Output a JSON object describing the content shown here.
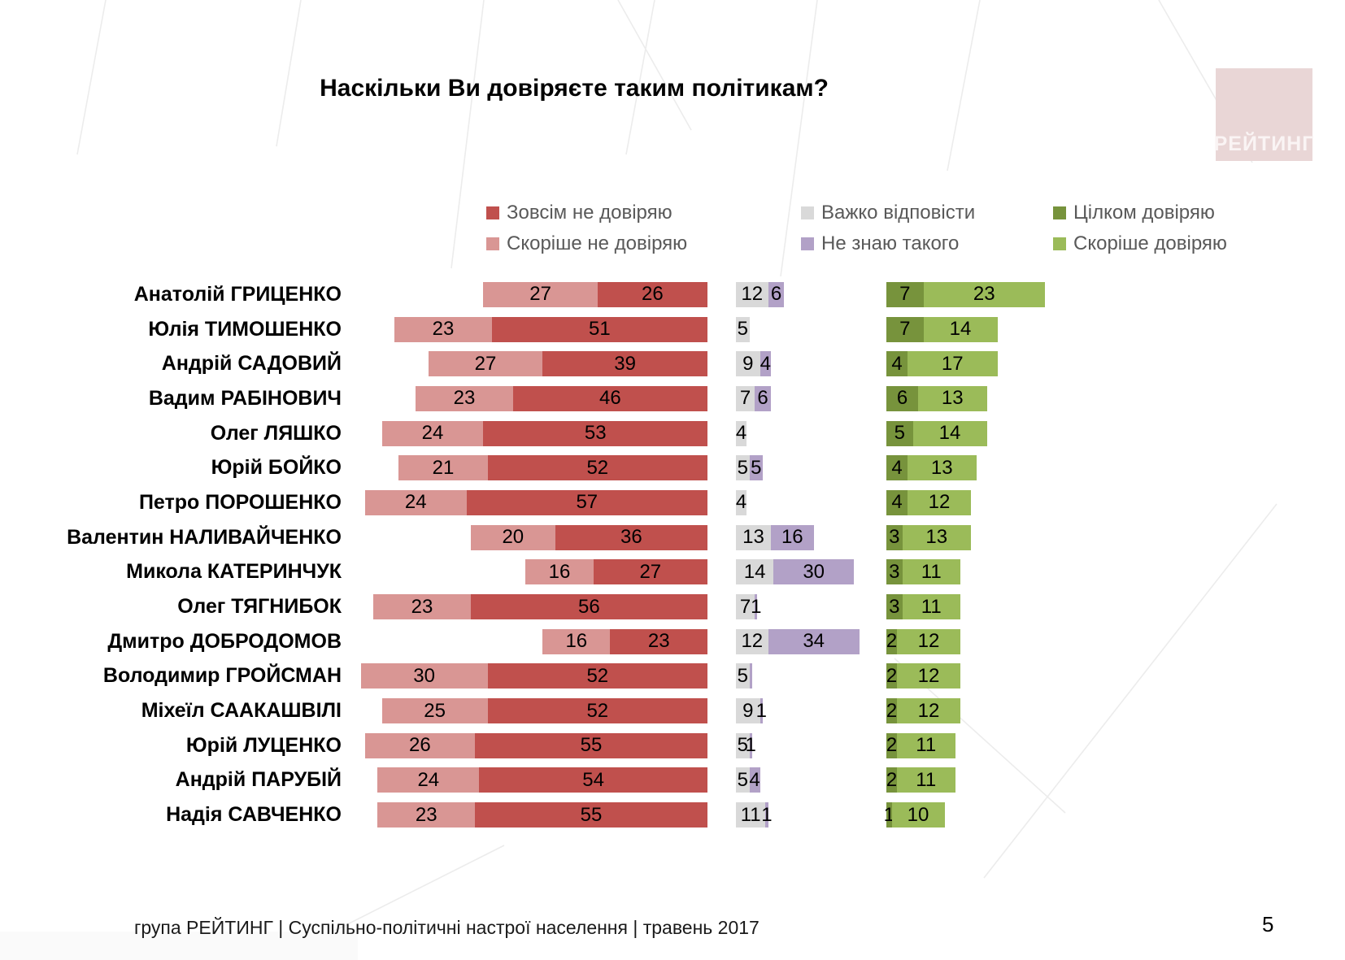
{
  "title": "Наскільки Ви довіряєте таким політикам?",
  "logo": {
    "text": "РЕЙТИНГ"
  },
  "page_number": "5",
  "footer": {
    "text": "група РЕЙТИНГ  |  Суспільно-політичні настрої населення  |  травень 2017"
  },
  "colors": {
    "not_at_all": "#c0504d",
    "rather_not": "#d99694",
    "hard_to_say": "#d9d9d9",
    "dont_know": "#b2a1c7",
    "fully_trust": "#77933c",
    "rather_trust": "#9bbb59",
    "logo_bg": "#e9d6d6",
    "logo_text": "#faf4f4",
    "legend_text": "#595959",
    "bg_line": "#ececec"
  },
  "legend": [
    {
      "label": "Зовсім не довіряю",
      "color": "#c0504d"
    },
    {
      "label": "Скоріше не довіряю",
      "color": "#d99694"
    },
    {
      "label": "Важко відповісти",
      "color": "#d9d9d9"
    },
    {
      "label": "Не знаю такого",
      "color": "#b2a1c7"
    },
    {
      "label": "Цілком довіряю",
      "color": "#77933c"
    },
    {
      "label": "Скоріше довіряю",
      "color": "#9bbb59"
    }
  ],
  "chart_data": {
    "type": "bar",
    "layout": "horizontal stacked, three aligned panels (negative / neutral / positive), values in percent",
    "title": "Наскільки Ви довіряєте таким політикам?",
    "xlabel": "",
    "ylabel": "",
    "legend_position": "top",
    "grid": false,
    "scales": {
      "neg": 5.2,
      "mid": 3.3,
      "pos": 6.5
    },
    "series_order": [
      "Скоріше не довіряю",
      "Зовсім не довіряю",
      "Важко відповісти",
      "Не знаю такого",
      "Цілком довіряю",
      "Скоріше довіряю"
    ],
    "rows": [
      {
        "name": "Анатолій ГРИЦЕНКО",
        "v": [
          27,
          26,
          12,
          6,
          7,
          23
        ],
        "l": [
          "27",
          "26",
          "12",
          "6",
          "7",
          "23"
        ]
      },
      {
        "name": "Юлія ТИМОШЕНКО",
        "v": [
          23,
          51,
          5,
          0,
          7,
          14
        ],
        "l": [
          "23",
          "51",
          "5",
          "",
          "7",
          "14"
        ]
      },
      {
        "name": "Андрій САДОВИЙ",
        "v": [
          27,
          39,
          9,
          4,
          4,
          17
        ],
        "l": [
          "27",
          "39",
          "9",
          "4",
          "4",
          "17"
        ]
      },
      {
        "name": "Вадим РАБІНОВИЧ",
        "v": [
          23,
          46,
          7,
          6,
          6,
          13
        ],
        "l": [
          "23",
          "46",
          "7",
          "6",
          "6",
          "13"
        ]
      },
      {
        "name": "Олег ЛЯШКО",
        "v": [
          24,
          53,
          4,
          0,
          5,
          14
        ],
        "l": [
          "24",
          "53",
          "4",
          "",
          "5",
          "14"
        ]
      },
      {
        "name": "Юрій БОЙКО",
        "v": [
          21,
          52,
          5,
          5,
          4,
          13
        ],
        "l": [
          "21",
          "52",
          "5",
          "5",
          "4",
          "13"
        ]
      },
      {
        "name": "Петро ПОРОШЕНКО",
        "v": [
          24,
          57,
          4,
          0,
          4,
          12
        ],
        "l": [
          "24",
          "57",
          "4",
          "",
          "4",
          "12"
        ]
      },
      {
        "name": "Валентин НАЛИВАЙЧЕНКО",
        "v": [
          20,
          36,
          13,
          16,
          3,
          13
        ],
        "l": [
          "20",
          "36",
          "13",
          "16",
          "3",
          "13"
        ]
      },
      {
        "name": "Микола КАТЕРИНЧУК",
        "v": [
          16,
          27,
          14,
          30,
          3,
          11
        ],
        "l": [
          "16",
          "27",
          "14",
          "30",
          "3",
          "11"
        ]
      },
      {
        "name": "Олег ТЯГНИБОК",
        "v": [
          23,
          56,
          7,
          1,
          3,
          11
        ],
        "l": [
          "23",
          "56",
          "7",
          "1",
          "3",
          "11"
        ]
      },
      {
        "name": "Дмитро ДОБРОДОМОВ",
        "v": [
          16,
          23,
          12,
          34,
          2,
          12
        ],
        "l": [
          "16",
          "23",
          "12",
          "34",
          "2",
          "12"
        ]
      },
      {
        "name": "Володимир ГРОЙСМАН",
        "v": [
          30,
          52,
          5,
          1,
          2,
          12
        ],
        "l": [
          "30",
          "52",
          "5",
          "",
          "2",
          "12"
        ]
      },
      {
        "name": "Міхеїл СААКАШВІЛІ",
        "v": [
          25,
          52,
          9,
          1,
          2,
          12
        ],
        "l": [
          "25",
          "52",
          "9",
          "1",
          "2",
          "12"
        ]
      },
      {
        "name": "Юрій ЛУЦЕНКО",
        "v": [
          26,
          55,
          5,
          1,
          2,
          11
        ],
        "l": [
          "26",
          "55",
          "5",
          "1",
          "2",
          "11"
        ]
      },
      {
        "name": "Андрій ПАРУБІЙ",
        "v": [
          24,
          54,
          5,
          4,
          2,
          11
        ],
        "l": [
          "24",
          "54",
          "5",
          "4",
          "2",
          "11"
        ]
      },
      {
        "name": "Надія САВЧЕНКО",
        "v": [
          23,
          55,
          11,
          1,
          1,
          10
        ],
        "l": [
          "23",
          "55",
          "11",
          "1",
          "1",
          "10"
        ]
      }
    ]
  }
}
